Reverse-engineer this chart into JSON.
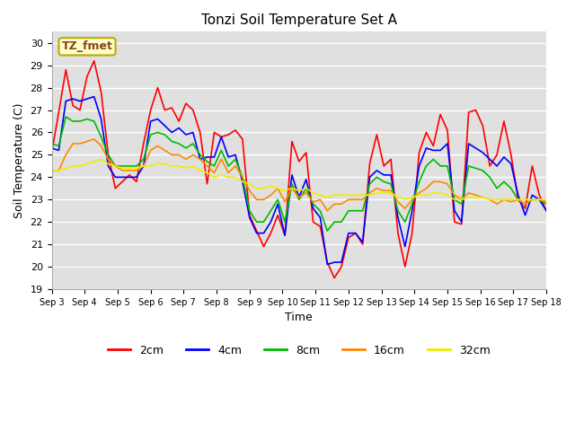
{
  "title": "Tonzi Soil Temperature Set A",
  "xlabel": "Time",
  "ylabel": "Soil Temperature (C)",
  "ylim": [
    19.0,
    30.5
  ],
  "yticks": [
    19.0,
    20.0,
    21.0,
    22.0,
    23.0,
    24.0,
    25.0,
    26.0,
    27.0,
    28.0,
    29.0,
    30.0
  ],
  "annotation_text": "TZ_fmet",
  "annotation_bg": "#ffffcc",
  "annotation_border": "#bbaa00",
  "xtick_labels": [
    "Sep 3",
    "Sep 4",
    "Sep 5",
    "Sep 6",
    "Sep 7",
    "Sep 8",
    "Sep 9",
    "Sep 10",
    "Sep 11",
    "Sep 12",
    "Sep 13",
    "Sep 14",
    "Sep 15",
    "Sep 16",
    "Sep 17",
    "Sep 18"
  ],
  "series_2cm_color": "#ff0000",
  "series_4cm_color": "#0000ff",
  "series_8cm_color": "#00bb00",
  "series_16cm_color": "#ff8800",
  "series_32cm_color": "#eeee00",
  "linewidth": 1.2,
  "series_2cm": [
    25.1,
    26.9,
    28.8,
    27.2,
    27.0,
    28.5,
    29.2,
    27.8,
    25.0,
    23.5,
    23.8,
    24.1,
    23.8,
    25.5,
    27.0,
    28.0,
    27.0,
    27.1,
    26.5,
    27.3,
    27.0,
    26.0,
    23.7,
    26.0,
    25.8,
    25.9,
    26.1,
    25.7,
    22.3,
    21.6,
    20.9,
    21.5,
    22.3,
    21.4,
    25.6,
    24.7,
    25.1,
    22.0,
    21.8,
    20.2,
    19.5,
    20.0,
    21.3,
    21.5,
    21.0,
    24.6,
    25.9,
    24.5,
    24.8,
    21.5,
    20.0,
    21.5,
    25.1,
    26.0,
    25.4,
    26.8,
    26.1,
    22.0,
    21.9,
    26.9,
    27.0,
    26.3,
    24.5,
    25.0,
    26.5,
    25.0,
    23.0,
    22.6,
    24.5,
    23.2,
    22.5
  ],
  "series_4cm": [
    25.3,
    25.2,
    27.4,
    27.5,
    27.4,
    27.5,
    27.6,
    26.6,
    24.5,
    24.0,
    24.0,
    24.0,
    24.0,
    24.5,
    26.5,
    26.6,
    26.3,
    26.0,
    26.2,
    25.9,
    26.0,
    24.8,
    24.9,
    24.9,
    25.8,
    24.9,
    25.0,
    23.8,
    22.2,
    21.5,
    21.5,
    22.0,
    22.8,
    21.4,
    24.1,
    23.1,
    23.9,
    22.6,
    22.2,
    20.1,
    20.2,
    20.2,
    21.5,
    21.5,
    21.1,
    24.0,
    24.3,
    24.1,
    24.1,
    22.2,
    20.9,
    22.5,
    24.5,
    25.3,
    25.2,
    25.2,
    25.5,
    22.5,
    22.0,
    25.5,
    25.3,
    25.1,
    24.8,
    24.5,
    24.9,
    24.6,
    23.2,
    22.3,
    23.2,
    23.0,
    22.5
  ],
  "series_8cm": [
    25.5,
    25.4,
    26.7,
    26.5,
    26.5,
    26.6,
    26.5,
    25.8,
    25.0,
    24.5,
    24.5,
    24.5,
    24.5,
    24.8,
    25.9,
    26.0,
    25.9,
    25.6,
    25.5,
    25.3,
    25.5,
    25.0,
    24.7,
    24.5,
    25.2,
    24.5,
    24.8,
    24.0,
    22.5,
    22.0,
    22.0,
    22.5,
    23.0,
    22.0,
    23.7,
    23.0,
    23.5,
    22.8,
    22.5,
    21.6,
    22.0,
    22.0,
    22.5,
    22.5,
    22.5,
    23.7,
    24.0,
    23.8,
    23.7,
    22.5,
    22.0,
    22.8,
    23.8,
    24.5,
    24.8,
    24.5,
    24.5,
    23.0,
    22.8,
    24.5,
    24.4,
    24.3,
    24.0,
    23.5,
    23.8,
    23.5,
    23.0,
    22.8,
    23.0,
    23.0,
    22.8
  ],
  "series_16cm": [
    24.3,
    24.3,
    25.0,
    25.5,
    25.5,
    25.6,
    25.7,
    25.4,
    24.8,
    24.5,
    24.3,
    24.3,
    24.3,
    24.5,
    25.2,
    25.4,
    25.2,
    25.0,
    25.0,
    24.8,
    25.0,
    24.8,
    24.5,
    24.2,
    24.8,
    24.2,
    24.5,
    24.0,
    23.4,
    23.0,
    23.0,
    23.2,
    23.5,
    22.9,
    23.5,
    23.1,
    23.3,
    22.9,
    23.0,
    22.5,
    22.8,
    22.8,
    23.0,
    23.0,
    23.0,
    23.3,
    23.5,
    23.4,
    23.4,
    22.9,
    22.6,
    23.0,
    23.3,
    23.5,
    23.8,
    23.8,
    23.7,
    23.2,
    23.0,
    23.3,
    23.2,
    23.1,
    23.0,
    22.8,
    23.0,
    22.9,
    23.0,
    22.8,
    23.0,
    23.0,
    22.9
  ],
  "series_32cm": [
    24.3,
    24.3,
    24.4,
    24.5,
    24.5,
    24.6,
    24.7,
    24.8,
    24.6,
    24.5,
    24.4,
    24.4,
    24.4,
    24.5,
    24.5,
    24.6,
    24.6,
    24.5,
    24.5,
    24.4,
    24.5,
    24.3,
    24.2,
    24.0,
    24.1,
    24.0,
    24.0,
    23.8,
    23.7,
    23.5,
    23.5,
    23.6,
    23.5,
    23.4,
    23.5,
    23.4,
    23.5,
    23.3,
    23.2,
    23.1,
    23.2,
    23.2,
    23.2,
    23.2,
    23.2,
    23.2,
    23.3,
    23.3,
    23.3,
    23.1,
    23.0,
    23.1,
    23.2,
    23.2,
    23.3,
    23.3,
    23.2,
    23.0,
    23.0,
    23.1,
    23.1,
    23.1,
    23.0,
    23.0,
    23.0,
    23.0,
    23.0,
    23.0,
    23.0,
    23.0,
    23.0
  ]
}
